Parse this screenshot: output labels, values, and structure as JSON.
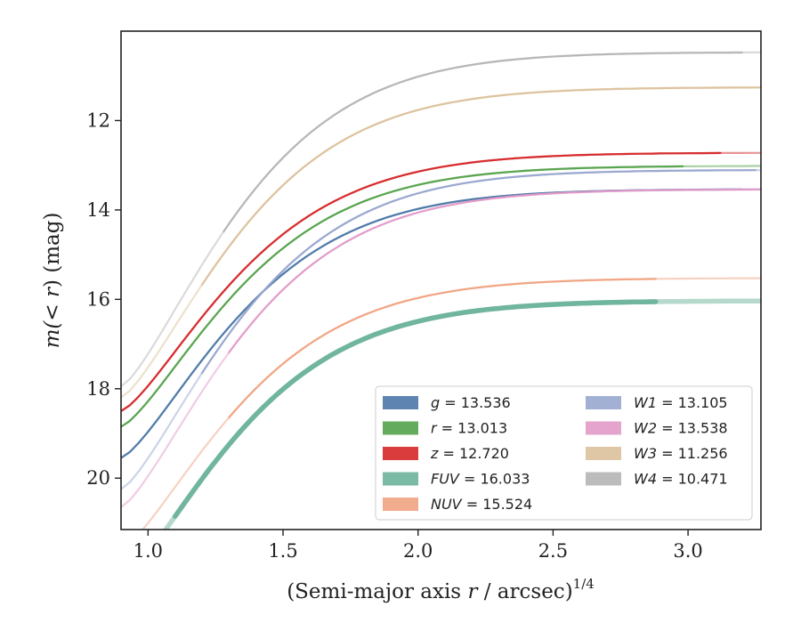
{
  "chart_data": {
    "type": "line",
    "xlabel": "(Semi-major axis r / arcsec)",
    "xlabel_var": "r",
    "xlabel_prefix": "(Semi-major axis ",
    "xlabel_suffix": " / arcsec)",
    "xlabel_exponent": "1/4",
    "ylabel": "m(< r) (mag)",
    "ylabel_prefix": "m(",
    "ylabel_var": "< r",
    "ylabel_suffix": ") (mag)",
    "xlim": [
      0.9,
      3.27
    ],
    "ylim": [
      21.15,
      10.0
    ],
    "y_inverted": true,
    "xticks": [
      1.0,
      1.5,
      2.0,
      2.5,
      3.0
    ],
    "xtick_labels": [
      "1.0",
      "1.5",
      "2.0",
      "2.5",
      "3.0"
    ],
    "yticks": [
      12,
      14,
      16,
      18,
      20
    ],
    "ytick_labels": [
      "12",
      "14",
      "16",
      "18",
      "20"
    ],
    "grid": false,
    "legend_position": "lower-right",
    "legend_columns": 2,
    "series": [
      {
        "name": "g",
        "value": "13.536",
        "color": "#4c78a8",
        "final": 13.536,
        "y_at_0_9": 19.55,
        "solid_start": 0.9,
        "solid_end": 3.2,
        "width": 2.2
      },
      {
        "name": "r",
        "value": "13.013",
        "color": "#54a24b",
        "final": 13.013,
        "y_at_0_9": 18.85,
        "solid_start": 0.9,
        "solid_end": 2.98,
        "width": 2.2
      },
      {
        "name": "z",
        "value": "12.720",
        "color": "#d62728",
        "final": 12.72,
        "y_at_0_9": 18.5,
        "solid_start": 0.9,
        "solid_end": 3.12,
        "width": 2.2
      },
      {
        "name": "FUV",
        "value": "16.033",
        "color": "#6db39a",
        "final": 16.033,
        "y_at_0_9": 22.3,
        "solid_start": 1.1,
        "solid_end": 2.88,
        "width": 5.5
      },
      {
        "name": "NUV",
        "value": "15.524",
        "color": "#f0a382",
        "final": 15.524,
        "y_at_0_9": 21.6,
        "solid_start": 1.3,
        "solid_end": 2.88,
        "width": 2.2
      },
      {
        "name": "W1",
        "value": "13.105",
        "color": "#98a7cf",
        "final": 13.105,
        "y_at_0_9": 20.25,
        "solid_start": 1.2,
        "solid_end": 3.25,
        "width": 2.2
      },
      {
        "name": "W2",
        "value": "13.538",
        "color": "#e19ac8",
        "final": 13.538,
        "y_at_0_9": 20.65,
        "solid_start": 1.3,
        "solid_end": 3.27,
        "width": 2.2
      },
      {
        "name": "W3",
        "value": "11.256",
        "color": "#dcc19c",
        "final": 11.256,
        "y_at_0_9": 18.2,
        "solid_start": 1.2,
        "solid_end": 3.27,
        "width": 2.2
      },
      {
        "name": "W4",
        "value": "10.471",
        "color": "#b5b5b5",
        "final": 10.471,
        "y_at_0_9": 17.95,
        "solid_start": 1.28,
        "solid_end": 3.2,
        "width": 2.2
      }
    ],
    "colors": {
      "axis": "#222222",
      "text": "#222222",
      "background": "#ffffff",
      "legend_border": "#cccccc"
    }
  }
}
